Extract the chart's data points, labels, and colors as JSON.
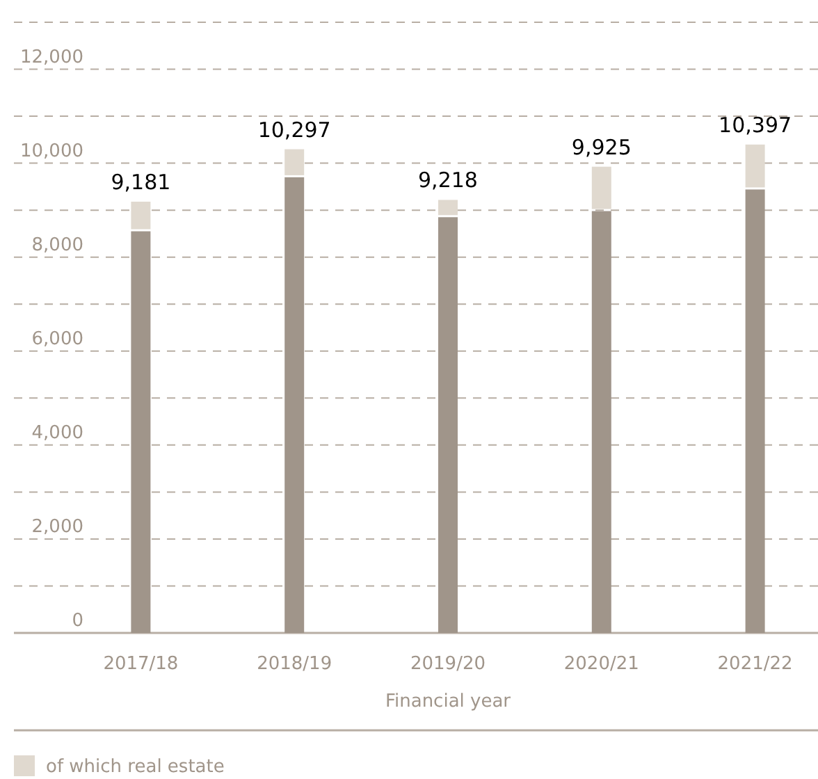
{
  "chart_data": {
    "type": "bar",
    "stacked": true,
    "xlabel": "Financial year",
    "categories": [
      "2017/18",
      "2018/19",
      "2019/20",
      "2020/21",
      "2021/22"
    ],
    "series": [
      {
        "color": "#a0958a",
        "values": [
          8550,
          9700,
          8850,
          8980,
          9440
        ]
      },
      {
        "name": "of which real estate",
        "color": "#e0d9cf",
        "values": [
          631,
          597,
          368,
          945,
          957
        ]
      }
    ],
    "totals": [
      "9,181",
      "10,297",
      "9,218",
      "9,925",
      "10,397"
    ],
    "ylim": [
      0,
      13000
    ],
    "yticks": [
      0,
      {
        "value": 1000,
        "label": null
      },
      {
        "value": 2000,
        "label": "2,000"
      },
      {
        "value": 3000,
        "label": null
      },
      {
        "value": 4000,
        "label": "4,000"
      },
      {
        "value": 5000,
        "label": null
      },
      {
        "value": 6000,
        "label": "6,000"
      },
      {
        "value": 7000,
        "label": null
      },
      {
        "value": 8000,
        "label": "8,000"
      },
      {
        "value": 9000,
        "label": null
      },
      {
        "value": 10000,
        "label": "10,000"
      },
      {
        "value": 11000,
        "label": null
      },
      {
        "value": 12000,
        "label": "12,000"
      },
      {
        "value": 13000,
        "label": null
      }
    ],
    "grid": "y",
    "legend": "bottom"
  }
}
